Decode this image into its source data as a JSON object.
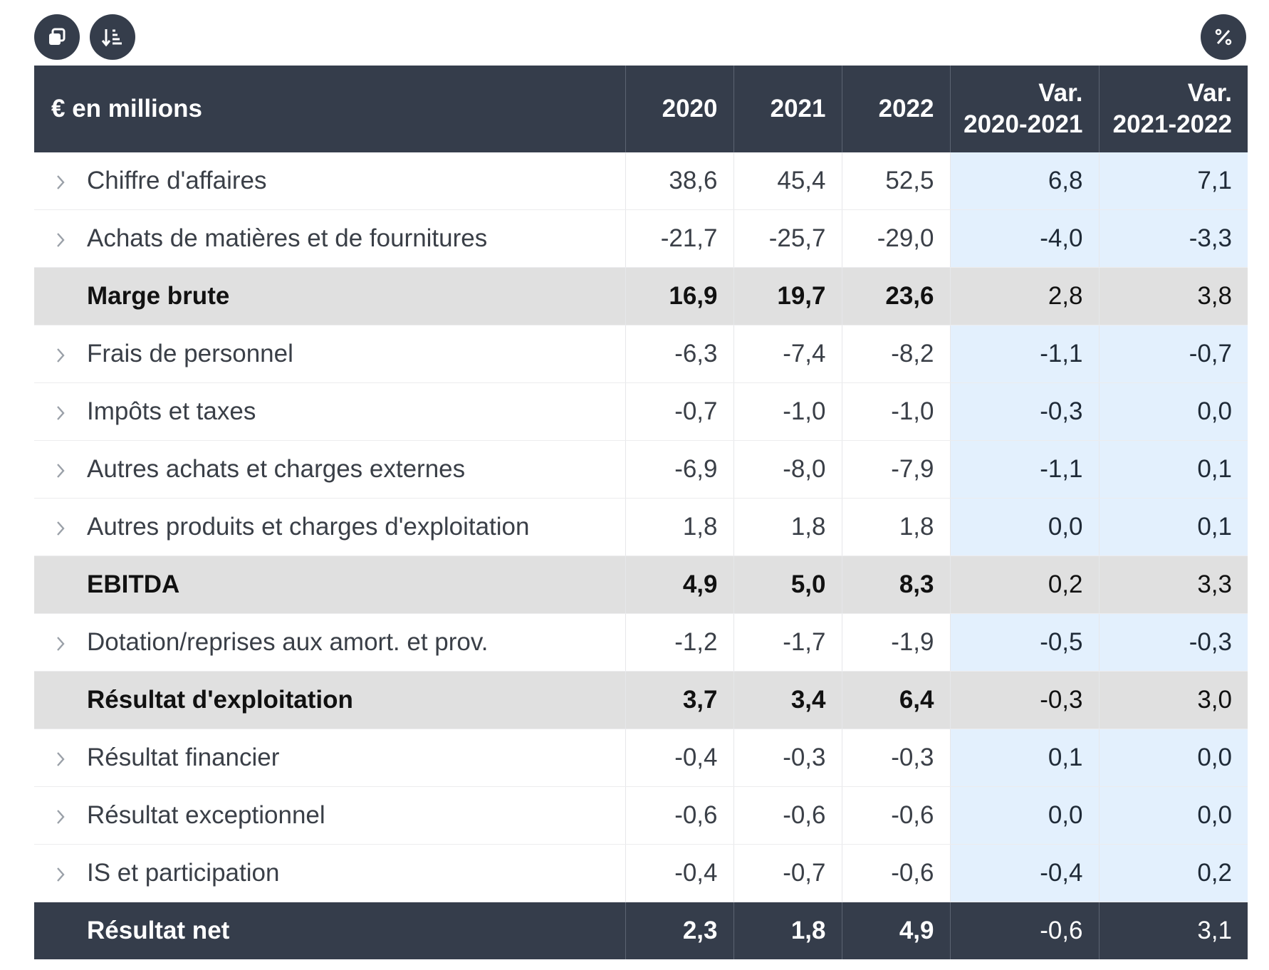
{
  "toolbar": {
    "copy_icon": "copy-icon",
    "sort_icon": "sort-descending-icon",
    "percent_icon": "percent-icon"
  },
  "table": {
    "header": {
      "label": "€ en millions",
      "y2020": "2020",
      "y2021": "2021",
      "y2022": "2022",
      "var1_line1": "Var.",
      "var1_line2": "2020-2021",
      "var2_line1": "Var.",
      "var2_line2": "2021-2022"
    },
    "rows": [
      {
        "label": "Chiffre d'affaires",
        "v2020": "38,6",
        "v2021": "45,4",
        "v2022": "52,5",
        "var1": "6,8",
        "var2": "7,1"
      },
      {
        "label": "Achats de matières et de fournitures",
        "v2020": "-21,7",
        "v2021": "-25,7",
        "v2022": "-29,0",
        "var1": "-4,0",
        "var2": "-3,3"
      },
      {
        "label": "Marge brute",
        "v2020": "16,9",
        "v2021": "19,7",
        "v2022": "23,6",
        "var1": "2,8",
        "var2": "3,8"
      },
      {
        "label": "Frais de personnel",
        "v2020": "-6,3",
        "v2021": "-7,4",
        "v2022": "-8,2",
        "var1": "-1,1",
        "var2": "-0,7"
      },
      {
        "label": "Impôts et taxes",
        "v2020": "-0,7",
        "v2021": "-1,0",
        "v2022": "-1,0",
        "var1": "-0,3",
        "var2": "0,0"
      },
      {
        "label": "Autres achats et charges externes",
        "v2020": "-6,9",
        "v2021": "-8,0",
        "v2022": "-7,9",
        "var1": "-1,1",
        "var2": "0,1"
      },
      {
        "label": "Autres produits et charges d'exploitation",
        "v2020": "1,8",
        "v2021": "1,8",
        "v2022": "1,8",
        "var1": "0,0",
        "var2": "0,1"
      },
      {
        "label": "EBITDA",
        "v2020": "4,9",
        "v2021": "5,0",
        "v2022": "8,3",
        "var1": "0,2",
        "var2": "3,3"
      },
      {
        "label": "Dotation/reprises aux amort. et prov.",
        "v2020": "-1,2",
        "v2021": "-1,7",
        "v2022": "-1,9",
        "var1": "-0,5",
        "var2": "-0,3"
      },
      {
        "label": "Résultat d'exploitation",
        "v2020": "3,7",
        "v2021": "3,4",
        "v2022": "6,4",
        "var1": "-0,3",
        "var2": "3,0"
      },
      {
        "label": "Résultat financier",
        "v2020": "-0,4",
        "v2021": "-0,3",
        "v2022": "-0,3",
        "var1": "0,1",
        "var2": "0,0"
      },
      {
        "label": "Résultat exceptionnel",
        "v2020": "-0,6",
        "v2021": "-0,6",
        "v2022": "-0,6",
        "var1": "0,0",
        "var2": "0,0"
      },
      {
        "label": "IS et participation",
        "v2020": "-0,4",
        "v2021": "-0,7",
        "v2022": "-0,6",
        "var1": "-0,4",
        "var2": "0,2"
      },
      {
        "label": "Résultat net",
        "v2020": "2,3",
        "v2021": "1,8",
        "v2022": "4,9",
        "var1": "-0,6",
        "var2": "3,1"
      }
    ]
  },
  "colors": {
    "header_bg": "#353d4b",
    "subtotal_bg": "#e0e0e0",
    "variance_bg": "#e3f0fd"
  }
}
